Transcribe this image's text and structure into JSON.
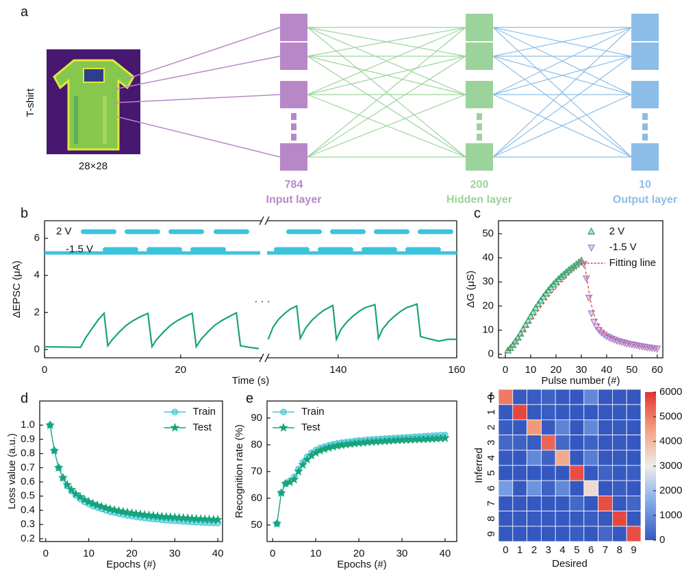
{
  "network": {
    "panel_label": "a",
    "image_label": "T-shirt",
    "image_size": "28×28",
    "layers": [
      {
        "count": "784",
        "name": "Input layer",
        "color": "#b887c8"
      },
      {
        "count": "200",
        "name": "Hidden layer",
        "color": "#9bd39b"
      },
      {
        "count": "10",
        "name": "Output layer",
        "color": "#8bbde8"
      }
    ]
  },
  "chart_data": [
    {
      "type": "line",
      "panel_label": "b",
      "xlabel": "Time (s)",
      "ylabel": "ΔEPSC (μA)",
      "ylim": [
        -0.45,
        6.95
      ],
      "yticks": [
        0,
        2,
        4,
        6
      ],
      "color": "#17a37a",
      "pulse_color": "#3cc3dc",
      "pulse_labels": [
        "2 V",
        "-1.5 V"
      ],
      "ellipsis": "· · ·",
      "segments": [
        {
          "xlim": [
            0,
            32
          ],
          "xticks": [
            0,
            20
          ],
          "x": [
            0,
            5.3,
            6,
            7,
            8,
            8.75,
            9.3,
            10,
            11,
            12,
            13,
            14,
            15.2,
            15.8,
            16.5,
            17.5,
            18.5,
            19.5,
            20.5,
            21.7,
            22.3,
            23,
            24,
            25,
            26,
            27,
            28.2,
            28.8,
            30,
            31.5
          ],
          "values": [
            0.15,
            0.12,
            0.6,
            1.15,
            1.65,
            1.95,
            0.2,
            0.55,
            0.95,
            1.3,
            1.55,
            1.75,
            1.95,
            0.15,
            0.55,
            0.95,
            1.3,
            1.55,
            1.75,
            1.95,
            0.15,
            0.55,
            0.95,
            1.3,
            1.55,
            1.75,
            1.98,
            0.2,
            0.12,
            0.05
          ]
        },
        {
          "xlim": [
            128,
            160
          ],
          "xticks": [
            140,
            160
          ],
          "x": [
            128.2,
            129,
            130,
            131,
            132,
            133,
            133.6,
            134.5,
            135.5,
            136.5,
            137.5,
            139.1,
            139.7,
            140.5,
            141.5,
            142.5,
            143.5,
            144.5,
            146.2,
            146.8,
            147.5,
            148.5,
            149.5,
            150.5,
            151.5,
            153.3,
            153.9,
            155,
            157,
            158.5,
            160
          ],
          "values": [
            0.55,
            1.2,
            1.65,
            1.95,
            2.2,
            2.35,
            0.6,
            1.15,
            1.55,
            1.85,
            2.1,
            2.38,
            0.55,
            1.1,
            1.5,
            1.8,
            2.05,
            2.25,
            2.42,
            0.6,
            1.1,
            1.5,
            1.8,
            2.05,
            2.25,
            2.45,
            0.7,
            0.6,
            0.45,
            0.55,
            0.55
          ]
        }
      ]
    },
    {
      "type": "scatter",
      "panel_label": "c",
      "xlabel": "Pulse number (#)",
      "ylabel": "ΔG (μS)",
      "xlim": [
        -2.7,
        62.2
      ],
      "xticks": [
        0,
        10,
        20,
        30,
        40,
        50,
        60
      ],
      "ylim": [
        -1.5,
        55.4
      ],
      "yticks": [
        0,
        10,
        20,
        30,
        40,
        50
      ],
      "legend": "upper right",
      "series": [
        {
          "name": "2 V",
          "color": "#2aa06a",
          "marker": "triangle-up",
          "x": [
            1,
            2,
            3,
            4,
            5,
            6,
            7,
            8,
            9,
            10,
            11,
            12,
            13,
            14,
            15,
            16,
            17,
            18,
            19,
            20,
            21,
            22,
            23,
            24,
            25,
            26,
            27,
            28,
            29,
            30
          ],
          "values": [
            1.5,
            2.5,
            3.8,
            5.2,
            6.8,
            8.5,
            10.3,
            12.1,
            13.9,
            15.7,
            17.4,
            19.1,
            20.7,
            22.2,
            23.7,
            25.1,
            26.4,
            27.7,
            28.9,
            30.0,
            31.1,
            32.1,
            33.0,
            33.9,
            34.8,
            35.6,
            36.4,
            37.2,
            38.0,
            38.8
          ]
        },
        {
          "name": "-1.5 V",
          "color": "#a87cc8",
          "marker": "triangle-down",
          "x": [
            31,
            32,
            33,
            34,
            35,
            36,
            37,
            38,
            39,
            40,
            41,
            42,
            43,
            44,
            45,
            46,
            47,
            48,
            49,
            50,
            51,
            52,
            53,
            54,
            55,
            56,
            57,
            58,
            59,
            60
          ],
          "values": [
            37.5,
            31.5,
            23.5,
            17,
            13.5,
            11.5,
            10,
            9,
            8.2,
            7.5,
            7,
            6.5,
            6.1,
            5.7,
            5.4,
            5.1,
            4.8,
            4.5,
            4.3,
            4.1,
            3.9,
            3.7,
            3.5,
            3.3,
            3.1,
            2.9,
            2.8,
            2.6,
            2.5,
            2.3
          ]
        },
        {
          "name": "Fitting line",
          "color": "#e8473a",
          "marker": "dashed-line",
          "x": [
            0,
            3,
            6,
            9,
            12,
            15,
            18,
            21,
            24,
            27,
            30,
            31,
            32,
            33,
            34,
            35,
            36,
            38,
            40,
            43,
            46,
            50,
            55,
            60
          ],
          "values": [
            0,
            3,
            7.5,
            12.2,
            16.8,
            21,
            25,
            28.6,
            31.8,
            35.4,
            39,
            38.5,
            33,
            26,
            20.5,
            16.5,
            13.5,
            10.2,
            8,
            6.2,
            5,
            4,
            3,
            2.2
          ]
        }
      ]
    },
    {
      "type": "line",
      "panel_label": "d",
      "xlabel": "Epochs (#)",
      "ylabel": "Loss value (a.u.)",
      "xlim": [
        -1.4,
        41.1
      ],
      "xticks": [
        0,
        10,
        20,
        30,
        40
      ],
      "ylim": [
        0.18,
        1.17
      ],
      "yticks": [
        0.2,
        0.3,
        0.4,
        0.5,
        0.6,
        0.7,
        0.8,
        0.9,
        {
          "value": 1,
          "label": "1.0"
        }
      ],
      "legend": "upper right",
      "series": [
        {
          "name": "Train",
          "color": "#3ec6d8",
          "marker": "circle",
          "x": [
            1,
            2,
            3,
            4,
            5,
            6,
            7,
            8,
            9,
            10,
            11,
            12,
            13,
            14,
            15,
            16,
            17,
            18,
            19,
            20,
            21,
            22,
            23,
            24,
            25,
            26,
            27,
            28,
            29,
            30,
            31,
            32,
            33,
            34,
            35,
            36,
            37,
            38,
            39,
            40
          ],
          "values": [
            1.0,
            0.82,
            0.7,
            0.625,
            0.57,
            0.535,
            0.505,
            0.48,
            0.46,
            0.445,
            0.43,
            0.42,
            0.41,
            0.4,
            0.39,
            0.383,
            0.376,
            0.37,
            0.364,
            0.359,
            0.354,
            0.35,
            0.346,
            0.342,
            0.339,
            0.336,
            0.333,
            0.33,
            0.328,
            0.326,
            0.324,
            0.322,
            0.32,
            0.318,
            0.316,
            0.315,
            0.313,
            0.312,
            0.311,
            0.31
          ]
        },
        {
          "name": "Test",
          "color": "#17a37a",
          "marker": "star",
          "x": [
            1,
            2,
            3,
            4,
            5,
            6,
            7,
            8,
            9,
            10,
            11,
            12,
            13,
            14,
            15,
            16,
            17,
            18,
            19,
            20,
            21,
            22,
            23,
            24,
            25,
            26,
            27,
            28,
            29,
            30,
            31,
            32,
            33,
            34,
            35,
            36,
            37,
            38,
            39,
            40
          ],
          "values": [
            1.0,
            0.82,
            0.7,
            0.63,
            0.58,
            0.545,
            0.515,
            0.495,
            0.475,
            0.46,
            0.447,
            0.436,
            0.426,
            0.417,
            0.409,
            0.402,
            0.396,
            0.39,
            0.385,
            0.38,
            0.376,
            0.372,
            0.368,
            0.365,
            0.362,
            0.359,
            0.356,
            0.354,
            0.352,
            0.35,
            0.348,
            0.346,
            0.344,
            0.342,
            0.34,
            0.339,
            0.337,
            0.336,
            0.335,
            0.334
          ]
        }
      ]
    },
    {
      "type": "line",
      "panel_label": "e",
      "xlabel": "Epochs (#)",
      "ylabel": "Recognition rate (%)",
      "xlim": [
        -1.3,
        42.7
      ],
      "xticks": [
        0,
        10,
        20,
        30,
        40
      ],
      "ylim": [
        43.8,
        96.4
      ],
      "yticks": [
        50,
        60,
        70,
        80,
        90
      ],
      "legend": "upper left",
      "series": [
        {
          "name": "Train",
          "color": "#3ec6d8",
          "marker": "circle",
          "x": [
            1,
            2,
            3,
            4,
            5,
            6,
            7,
            8,
            9,
            10,
            11,
            12,
            13,
            14,
            15,
            16,
            17,
            18,
            19,
            20,
            21,
            22,
            23,
            24,
            25,
            26,
            27,
            28,
            29,
            30,
            31,
            32,
            33,
            34,
            35,
            36,
            37,
            38,
            39,
            40
          ],
          "values": [
            50.5,
            62,
            65.5,
            66.5,
            68,
            71,
            73.5,
            75.5,
            77,
            78,
            78.8,
            79.3,
            79.8,
            80.2,
            80.5,
            80.8,
            81,
            81.2,
            81.4,
            81.6,
            81.7,
            81.9,
            82,
            82.1,
            82.2,
            82.3,
            82.4,
            82.5,
            82.6,
            82.7,
            82.8,
            82.9,
            83,
            83.1,
            83.2,
            83.3,
            83.4,
            83.5,
            83.6,
            83.7
          ]
        },
        {
          "name": "Test",
          "color": "#17a37a",
          "marker": "star",
          "x": [
            1,
            2,
            3,
            4,
            5,
            6,
            7,
            8,
            9,
            10,
            11,
            12,
            13,
            14,
            15,
            16,
            17,
            18,
            19,
            20,
            21,
            22,
            23,
            24,
            25,
            26,
            27,
            28,
            29,
            30,
            31,
            32,
            33,
            34,
            35,
            36,
            37,
            38,
            39,
            40
          ],
          "values": [
            50.5,
            62,
            65.5,
            66,
            67,
            70,
            72.5,
            74.5,
            76,
            77,
            77.8,
            78.4,
            78.9,
            79.3,
            79.6,
            79.9,
            80.1,
            80.3,
            80.5,
            80.7,
            80.8,
            81,
            81.1,
            81.2,
            81.3,
            81.4,
            81.5,
            81.6,
            81.7,
            81.8,
            81.85,
            81.9,
            82,
            82.05,
            82.1,
            82.2,
            82.25,
            82.3,
            82.4,
            82.5
          ]
        }
      ]
    },
    {
      "type": "heatmap",
      "panel_label": "f",
      "xlabel": "Desired",
      "ylabel": "Inferred",
      "categories": [
        "0",
        "1",
        "2",
        "3",
        "4",
        "5",
        "6",
        "7",
        "8",
        "9"
      ],
      "row_categories": [
        "0",
        "1",
        "2",
        "3",
        "4",
        "5",
        "6",
        "7",
        "8",
        "9"
      ],
      "values": [
        [
          5000,
          30,
          80,
          200,
          30,
          0,
          900,
          0,
          20,
          0
        ],
        [
          20,
          5700,
          10,
          100,
          20,
          0,
          20,
          0,
          10,
          0
        ],
        [
          100,
          20,
          4600,
          60,
          800,
          0,
          900,
          0,
          40,
          0
        ],
        [
          300,
          200,
          70,
          5300,
          300,
          0,
          200,
          0,
          30,
          0
        ],
        [
          30,
          20,
          900,
          200,
          4300,
          0,
          700,
          0,
          30,
          0
        ],
        [
          0,
          0,
          0,
          0,
          0,
          5600,
          0,
          200,
          30,
          100
        ],
        [
          1300,
          40,
          1100,
          200,
          900,
          0,
          3400,
          0,
          100,
          0
        ],
        [
          0,
          0,
          0,
          0,
          0,
          300,
          0,
          5600,
          10,
          250
        ],
        [
          20,
          10,
          40,
          30,
          20,
          40,
          100,
          10,
          5700,
          10
        ],
        [
          0,
          0,
          0,
          0,
          0,
          100,
          0,
          300,
          20,
          5600
        ]
      ],
      "colorbar_lim": [
        0,
        6000
      ],
      "colorbar_ticks": [
        0,
        1000,
        2000,
        3000,
        4000,
        5000,
        6000
      ],
      "colormap": [
        "#3558c0",
        "#80a8e8",
        "#ececec",
        "#f3a080",
        "#e3322f"
      ]
    }
  ]
}
